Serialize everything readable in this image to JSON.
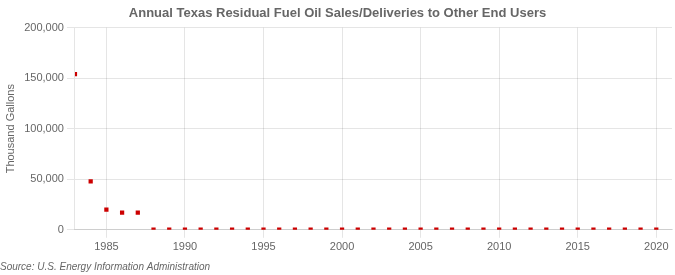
{
  "chart_data": {
    "type": "scatter",
    "title": "Annual Texas Residual Fuel Oil Sales/Deliveries to Other End Users",
    "ylabel": "Thousand Gallons",
    "source": "Source: U.S. Energy Information Administration",
    "color": "#cc0000",
    "marker": "square",
    "grid": true,
    "xlim": [
      1983,
      2021
    ],
    "ylim": [
      0,
      200000
    ],
    "xticks": [
      1985,
      1990,
      1995,
      2000,
      2005,
      2010,
      2015,
      2020
    ],
    "yticks": [
      0,
      {
        "value": 50000,
        "label": "50,000"
      },
      {
        "value": 100000,
        "label": "100,000"
      },
      {
        "value": 150000,
        "label": "150,000"
      },
      {
        "value": 200000,
        "label": "200,000"
      }
    ],
    "x": [
      1983,
      1984,
      1985,
      1986,
      1987,
      1988,
      1989,
      1990,
      1991,
      1992,
      1993,
      1994,
      1995,
      1996,
      1997,
      1998,
      1999,
      2000,
      2001,
      2002,
      2003,
      2004,
      2005,
      2006,
      2007,
      2008,
      2009,
      2010,
      2011,
      2012,
      2013,
      2014,
      2015,
      2016,
      2017,
      2018,
      2019,
      2020
    ],
    "values": [
      154000,
      48000,
      20000,
      17000,
      17000,
      100,
      100,
      100,
      100,
      100,
      100,
      100,
      100,
      100,
      100,
      100,
      100,
      100,
      100,
      100,
      100,
      100,
      100,
      100,
      100,
      100,
      100,
      100,
      100,
      100,
      100,
      100,
      100,
      100,
      100,
      100,
      100,
      100
    ]
  }
}
